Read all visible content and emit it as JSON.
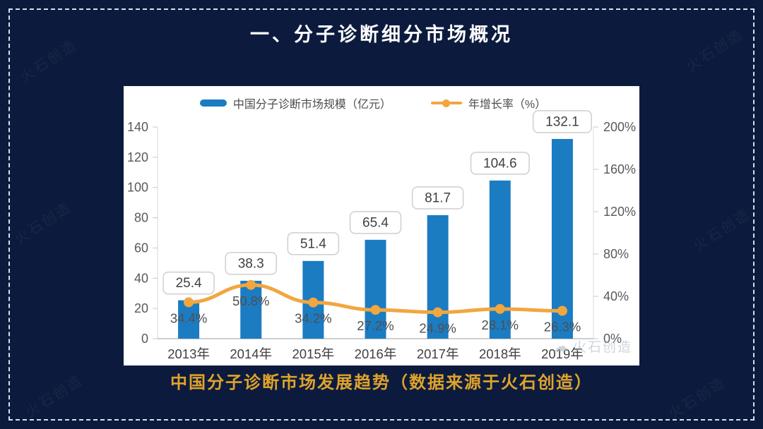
{
  "slide": {
    "title": "一、分子诊断细分市场概况",
    "caption": "中国分子诊断市场发展趋势（数据来源于火石创造）",
    "watermark": "火石创造",
    "colors": {
      "background": "#0C1B3D",
      "border": "#D6DFEF",
      "title": "#FFFFFF",
      "caption": "#DFA32B",
      "bar": "#1B7CC2",
      "line": "#F2A640",
      "axis_text": "#595959",
      "label_text": "#404040"
    }
  },
  "chart_data": {
    "type": "bar",
    "combo": "bar+line dual axis",
    "title": "",
    "categories": [
      "2013年",
      "2014年",
      "2015年",
      "2016年",
      "2017年",
      "2018年",
      "2019年"
    ],
    "series": [
      {
        "name": "中国分子诊断市场规模（亿元）",
        "type": "bar",
        "axis": "left",
        "color": "#1B7CC2",
        "values": [
          25.4,
          38.3,
          51.4,
          65.4,
          81.7,
          104.6,
          132.1
        ],
        "labels": [
          "25.4",
          "38.3",
          "51.4",
          "65.4",
          "81.7",
          "104.6",
          "132.1"
        ]
      },
      {
        "name": "年增长率（%）",
        "type": "line",
        "axis": "right",
        "color": "#F2A640",
        "values": [
          34.4,
          50.8,
          34.2,
          27.2,
          24.9,
          28.1,
          26.3
        ],
        "labels": [
          "34.4%",
          "50.8%",
          "34.2%",
          "27.2%",
          "24.9%",
          "28.1%",
          "26.3%"
        ]
      }
    ],
    "left_axis": {
      "min": 0,
      "max": 140,
      "step": 20,
      "tick_labels": [
        "0",
        "20",
        "40",
        "60",
        "80",
        "100",
        "120",
        "140"
      ]
    },
    "right_axis": {
      "min": 0,
      "max": 200,
      "step": 40,
      "tick_labels": [
        "0%",
        "40%",
        "80%",
        "120%",
        "160%",
        "200%"
      ]
    },
    "legend_position": "top",
    "grid": false
  }
}
